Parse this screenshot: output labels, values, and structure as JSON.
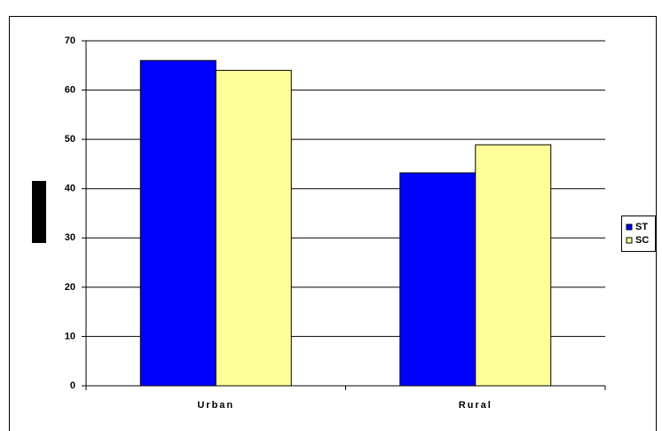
{
  "chart_data": {
    "type": "bar",
    "categories": [
      "Urban",
      "Rural"
    ],
    "series": [
      {
        "name": "ST",
        "color": "#0000ff",
        "values": [
          66,
          43.2
        ]
      },
      {
        "name": "SC",
        "color": "#ffff99",
        "values": [
          64,
          48.9
        ]
      }
    ],
    "ylim": [
      0,
      70
    ],
    "yticks": [
      0,
      10,
      20,
      30,
      40,
      50,
      60,
      70
    ],
    "grid": true,
    "legend": "right"
  }
}
